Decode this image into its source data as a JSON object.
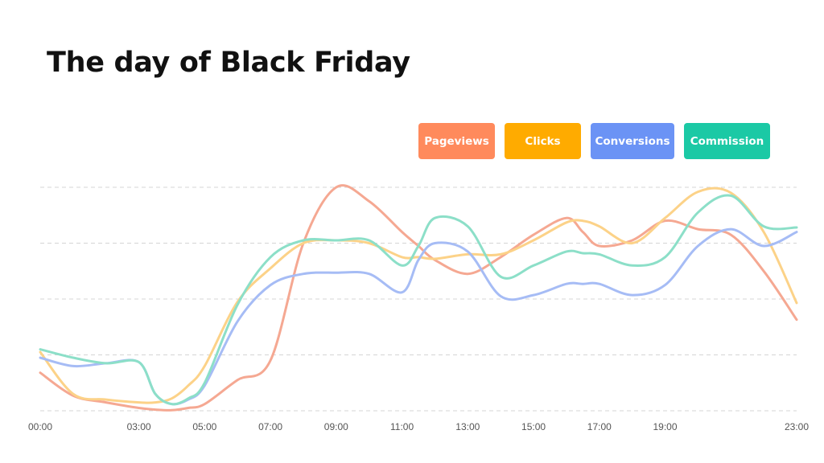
{
  "colors": {
    "pageviews": "#f5a892",
    "clicks": "#fcd288",
    "conversions": "#a6bcf5",
    "commission": "#8cdfc8",
    "legend_pageviews": "#ff8a5c",
    "legend_clicks": "#ffab00",
    "legend_conversions": "#6b93f5",
    "legend_commission": "#1bc9a5",
    "grid": "#d4d4d4"
  },
  "chart_data": {
    "type": "line",
    "title": "The day of Black Friday",
    "xlabel": "",
    "ylabel": "",
    "x": [
      0,
      1,
      2,
      3,
      3.5,
      4,
      4.5,
      5,
      6,
      7,
      8,
      9,
      10,
      11,
      11.5,
      12,
      13,
      14,
      15,
      16,
      16.5,
      17,
      18,
      19,
      20,
      21,
      22,
      23
    ],
    "tick_labels": [
      "00:00",
      "03:00",
      "05:00",
      "07:00",
      "09:00",
      "11:00",
      "13:00",
      "15:00",
      "17:00",
      "19:00",
      "23:00"
    ],
    "tick_positions": [
      0,
      3,
      5,
      7,
      9,
      11,
      13,
      15,
      17,
      19,
      23
    ],
    "ylim": [
      0,
      4
    ],
    "grid": true,
    "legend_position": "top-right",
    "series": [
      {
        "name": "Pageviews",
        "color_key": "pageviews",
        "values": [
          0.68,
          0.27,
          0.15,
          0.05,
          0.02,
          0.01,
          0.05,
          0.12,
          0.55,
          0.9,
          3.0,
          4.0,
          3.75,
          3.2,
          2.95,
          2.7,
          2.45,
          2.75,
          3.15,
          3.45,
          3.2,
          2.95,
          3.05,
          3.4,
          3.25,
          3.15,
          2.5,
          1.63
        ]
      },
      {
        "name": "Clicks",
        "color_key": "clicks",
        "values": [
          1.05,
          0.3,
          0.2,
          0.15,
          0.15,
          0.22,
          0.45,
          0.8,
          1.95,
          2.55,
          3.0,
          3.05,
          3.0,
          2.75,
          2.75,
          2.72,
          2.8,
          2.8,
          3.05,
          3.37,
          3.4,
          3.3,
          3.0,
          3.45,
          3.92,
          3.9,
          3.2,
          1.93
        ]
      },
      {
        "name": "Conversions",
        "color_key": "conversions",
        "values": [
          0.95,
          0.8,
          0.85,
          0.87,
          0.3,
          0.12,
          0.2,
          0.45,
          1.6,
          2.25,
          2.45,
          2.47,
          2.45,
          2.12,
          2.7,
          3.0,
          2.85,
          2.05,
          2.07,
          2.27,
          2.27,
          2.27,
          2.07,
          2.25,
          2.95,
          3.25,
          2.95,
          3.2
        ]
      },
      {
        "name": "Commission",
        "color_key": "commission",
        "values": [
          1.1,
          0.95,
          0.85,
          0.87,
          0.3,
          0.12,
          0.22,
          0.5,
          1.9,
          2.75,
          3.05,
          3.05,
          3.05,
          2.6,
          2.95,
          3.45,
          3.3,
          2.4,
          2.6,
          2.85,
          2.82,
          2.8,
          2.6,
          2.75,
          3.55,
          3.85,
          3.3,
          3.28
        ]
      }
    ]
  }
}
